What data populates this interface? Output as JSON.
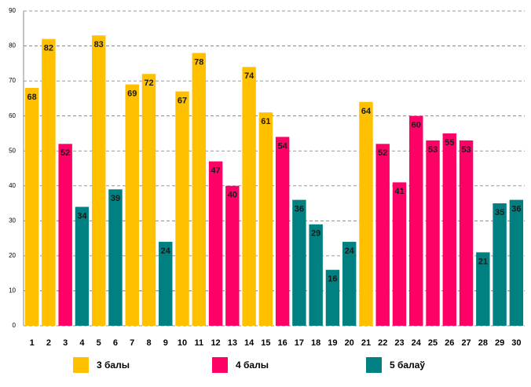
{
  "chart_data": {
    "type": "bar",
    "categories": [
      "1",
      "2",
      "3",
      "4",
      "5",
      "6",
      "7",
      "8",
      "9",
      "10",
      "11",
      "12",
      "13",
      "14",
      "15",
      "16",
      "17",
      "18",
      "19",
      "20",
      "21",
      "22",
      "23",
      "24",
      "25",
      "26",
      "27",
      "28",
      "29",
      "30"
    ],
    "series": [
      {
        "name": "3 балы",
        "color": "#FFC000",
        "values": [
          68,
          82,
          null,
          null,
          83,
          null,
          69,
          72,
          null,
          67,
          78,
          null,
          null,
          74,
          61,
          null,
          null,
          null,
          null,
          null,
          64,
          null,
          null,
          null,
          null,
          null,
          null,
          null,
          null,
          null
        ]
      },
      {
        "name": "4 балы",
        "color": "#FF0066",
        "values": [
          null,
          null,
          52,
          null,
          null,
          null,
          null,
          null,
          null,
          null,
          null,
          47,
          40,
          null,
          null,
          54,
          null,
          null,
          null,
          null,
          null,
          52,
          41,
          60,
          53,
          55,
          53,
          null,
          null,
          null
        ]
      },
      {
        "name": "5 балаў",
        "color": "#008080",
        "values": [
          null,
          null,
          null,
          34,
          null,
          39,
          null,
          null,
          24,
          null,
          null,
          null,
          null,
          null,
          null,
          null,
          36,
          29,
          16,
          24,
          null,
          null,
          null,
          null,
          null,
          null,
          null,
          21,
          35,
          36
        ]
      }
    ],
    "ylim": [
      0,
      90
    ],
    "yticks": [
      0,
      10,
      20,
      30,
      40,
      50,
      60,
      70,
      80,
      90
    ],
    "grid": true,
    "legend": "bottom"
  }
}
